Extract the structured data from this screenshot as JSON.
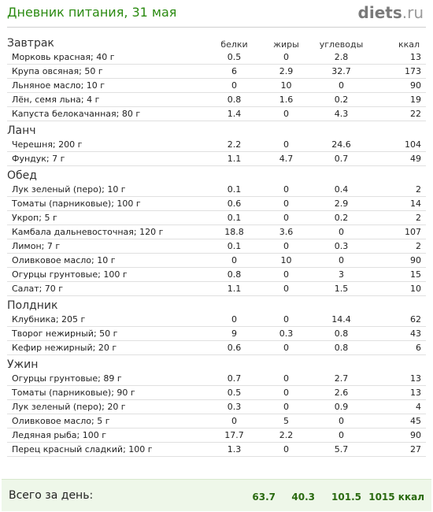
{
  "header": {
    "title": "Дневник питания, 31 мая",
    "logo_main": "diets",
    "logo_tld": ".ru"
  },
  "columns": [
    "белки",
    "жиры",
    "углеводы",
    "ккал"
  ],
  "meals": [
    {
      "name": "Завтрак",
      "items": [
        {
          "name": "Морковь красная; 40 г",
          "protein": "0.5",
          "fat": "0",
          "carbs": "2.8",
          "kcal": "13"
        },
        {
          "name": "Крупа овсяная; 50 г",
          "protein": "6",
          "fat": "2.9",
          "carbs": "32.7",
          "kcal": "173"
        },
        {
          "name": "Льняное масло; 10 г",
          "protein": "0",
          "fat": "10",
          "carbs": "0",
          "kcal": "90"
        },
        {
          "name": "Лён, семя льна; 4 г",
          "protein": "0.8",
          "fat": "1.6",
          "carbs": "0.2",
          "kcal": "19"
        },
        {
          "name": "Капуста белокачанная; 80 г",
          "protein": "1.4",
          "fat": "0",
          "carbs": "4.3",
          "kcal": "22"
        }
      ]
    },
    {
      "name": "Ланч",
      "items": [
        {
          "name": "Черешня; 200 г",
          "protein": "2.2",
          "fat": "0",
          "carbs": "24.6",
          "kcal": "104"
        },
        {
          "name": "Фундук; 7 г",
          "protein": "1.1",
          "fat": "4.7",
          "carbs": "0.7",
          "kcal": "49"
        }
      ]
    },
    {
      "name": "Обед",
      "items": [
        {
          "name": "Лук зеленый (перо); 10 г",
          "protein": "0.1",
          "fat": "0",
          "carbs": "0.4",
          "kcal": "2"
        },
        {
          "name": "Томаты (парниковые); 100 г",
          "protein": "0.6",
          "fat": "0",
          "carbs": "2.9",
          "kcal": "14"
        },
        {
          "name": "Укроп; 5 г",
          "protein": "0.1",
          "fat": "0",
          "carbs": "0.2",
          "kcal": "2"
        },
        {
          "name": "Камбала дальневосточная; 120 г",
          "protein": "18.8",
          "fat": "3.6",
          "carbs": "0",
          "kcal": "107"
        },
        {
          "name": "Лимон; 7 г",
          "protein": "0.1",
          "fat": "0",
          "carbs": "0.3",
          "kcal": "2"
        },
        {
          "name": "Оливковое масло; 10 г",
          "protein": "0",
          "fat": "10",
          "carbs": "0",
          "kcal": "90"
        },
        {
          "name": "Огурцы грунтовые; 100 г",
          "protein": "0.8",
          "fat": "0",
          "carbs": "3",
          "kcal": "15"
        },
        {
          "name": "Салат; 70 г",
          "protein": "1.1",
          "fat": "0",
          "carbs": "1.5",
          "kcal": "10"
        }
      ]
    },
    {
      "name": "Полдник",
      "items": [
        {
          "name": "Клубника; 205 г",
          "protein": "0",
          "fat": "0",
          "carbs": "14.4",
          "kcal": "62"
        },
        {
          "name": "Творог нежирный; 50 г",
          "protein": "9",
          "fat": "0.3",
          "carbs": "0.8",
          "kcal": "43"
        },
        {
          "name": "Кефир нежирный; 20 г",
          "protein": "0.6",
          "fat": "0",
          "carbs": "0.8",
          "kcal": "6"
        }
      ]
    },
    {
      "name": "Ужин",
      "items": [
        {
          "name": "Огурцы грунтовые; 89 г",
          "protein": "0.7",
          "fat": "0",
          "carbs": "2.7",
          "kcal": "13"
        },
        {
          "name": "Томаты (парниковые); 90 г",
          "protein": "0.5",
          "fat": "0",
          "carbs": "2.6",
          "kcal": "13"
        },
        {
          "name": "Лук зеленый (перо); 20 г",
          "protein": "0.3",
          "fat": "0",
          "carbs": "0.9",
          "kcal": "4"
        },
        {
          "name": "Оливковое масло; 5 г",
          "protein": "0",
          "fat": "5",
          "carbs": "0",
          "kcal": "45"
        },
        {
          "name": "Ледяная рыба; 100 г",
          "protein": "17.7",
          "fat": "2.2",
          "carbs": "0",
          "kcal": "90"
        },
        {
          "name": "Перец красный сладкий; 100 г",
          "protein": "1.3",
          "fat": "0",
          "carbs": "5.7",
          "kcal": "27"
        }
      ]
    }
  ],
  "totals": {
    "label": "Всего за день:",
    "protein": "63.7",
    "fat": "40.3",
    "carbs": "101.5",
    "kcal": "1015 ккал"
  }
}
